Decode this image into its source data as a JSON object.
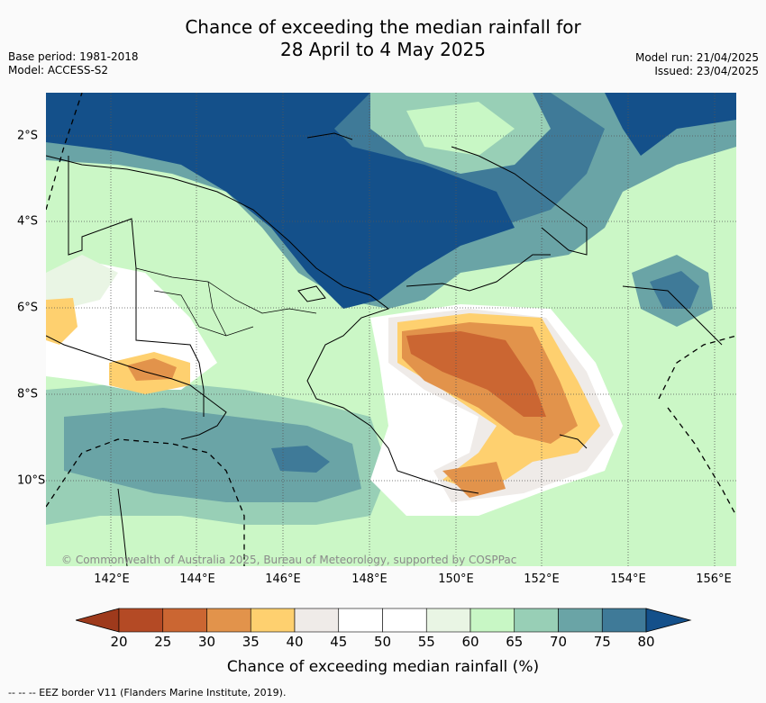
{
  "title": {
    "line1": "Chance of exceeding the median rainfall for",
    "line2": "28 April to 4 May 2025"
  },
  "meta": {
    "base_period": "Base period: 1981-2018",
    "model": "Model: ACCESS-S2",
    "model_run": "Model run: 21/04/2025",
    "issued": "Issued: 23/04/2025"
  },
  "map": {
    "copyright": "© Commonwealth of Australia 2025, Bureau of Meteorology, supported by COSPPac",
    "x_ticks": [
      "142°E",
      "144°E",
      "146°E",
      "148°E",
      "150°E",
      "152°E",
      "154°E",
      "156°E"
    ],
    "y_ticks": [
      "2°S",
      "4°S",
      "6°S",
      "8°S",
      "10°S"
    ]
  },
  "colorbar": {
    "ticks": [
      "20",
      "25",
      "30",
      "35",
      "40",
      "45",
      "50",
      "55",
      "60",
      "65",
      "70",
      "75",
      "80"
    ],
    "colors": [
      "#9e3a1c",
      "#b44a25",
      "#cb6632",
      "#e2934b",
      "#fed06f",
      "#efebe8",
      "#ffffff",
      "#ffffff",
      "#e9f5e4",
      "#c8f7c5",
      "#98cfb6",
      "#6aa4a6",
      "#3f7a98",
      "#14508a"
    ],
    "label": "Chance of exceeding median rainfall (%)"
  },
  "footnote": "--  --  -- EEZ border V11 (Flanders Marine Institute, 2019)."
}
